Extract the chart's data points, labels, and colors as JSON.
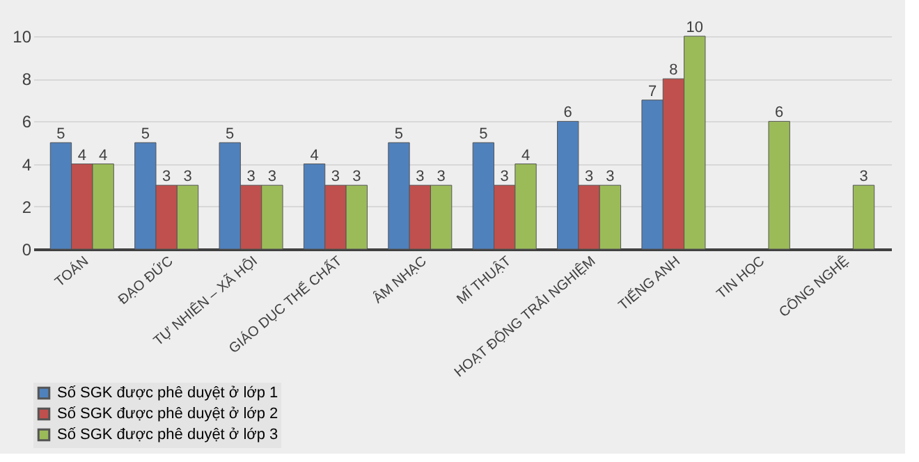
{
  "chart_data": {
    "type": "bar",
    "categories": [
      "TOÁN",
      "ĐẠO ĐỨC",
      "TỰ NHIÊN – XÃ HỘI",
      "GIÁO DỤC THỂ CHẤT",
      "ÂM NHẠC",
      "MĨ THUẬT",
      "HOẠT ĐỘNG TRẢI NGHIỆM",
      "TIẾNG ANH",
      "TIN HỌC",
      "CÔNG NGHỆ"
    ],
    "series": [
      {
        "name": "Số SGK được phê duyệt ở lớp 1",
        "color": "#4f81bd",
        "values": [
          5,
          5,
          5,
          4,
          5,
          5,
          6,
          7,
          null,
          null
        ]
      },
      {
        "name": "Số SGK được phê duyệt ở lớp 2",
        "color": "#c0504d",
        "values": [
          4,
          3,
          3,
          3,
          3,
          3,
          3,
          8,
          null,
          null
        ]
      },
      {
        "name": "Số SGK được phê duyệt ở lớp 3",
        "color": "#9bbb59",
        "values": [
          4,
          3,
          3,
          3,
          3,
          4,
          3,
          10,
          6,
          3
        ]
      }
    ],
    "ylim": [
      0,
      10
    ],
    "yticks": [
      0,
      2,
      4,
      6,
      8,
      10
    ],
    "grid": "y",
    "legend": "bottom",
    "data_labels": true
  }
}
